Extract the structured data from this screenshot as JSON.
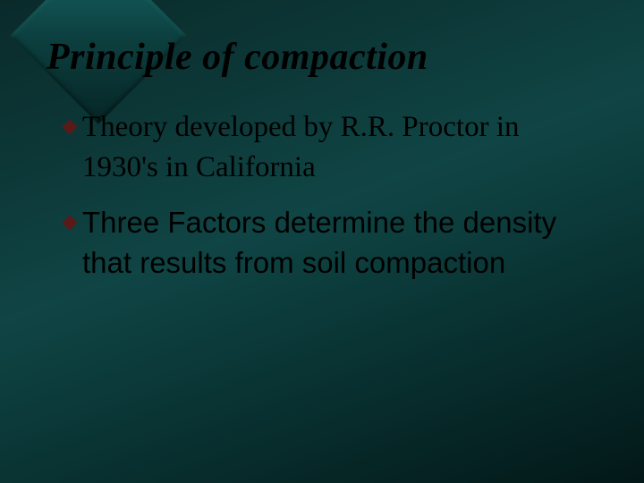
{
  "slide": {
    "title": "Principle of compaction",
    "title_color": "#000000",
    "title_fontsize": 42,
    "title_italic": true,
    "background_gradient": [
      "#0a2a2a",
      "#0d3838",
      "#104545",
      "#0a3535",
      "#031818"
    ],
    "diamond_colors": [
      "#1a6b6b",
      "#0d4040",
      "#062525"
    ],
    "bullet_marker_color": "#5a1a18",
    "bullets": [
      {
        "lead_word": "Theory",
        "rest": " developed by R.R. Proctor in 1930's in California",
        "font": "serif",
        "fontsize": 33,
        "color": "#000000"
      },
      {
        "lead_word": "Three",
        "rest": " Factors determine the density that results from soil compaction",
        "font": "sans",
        "fontsize": 33,
        "color": "#000000"
      }
    ]
  }
}
